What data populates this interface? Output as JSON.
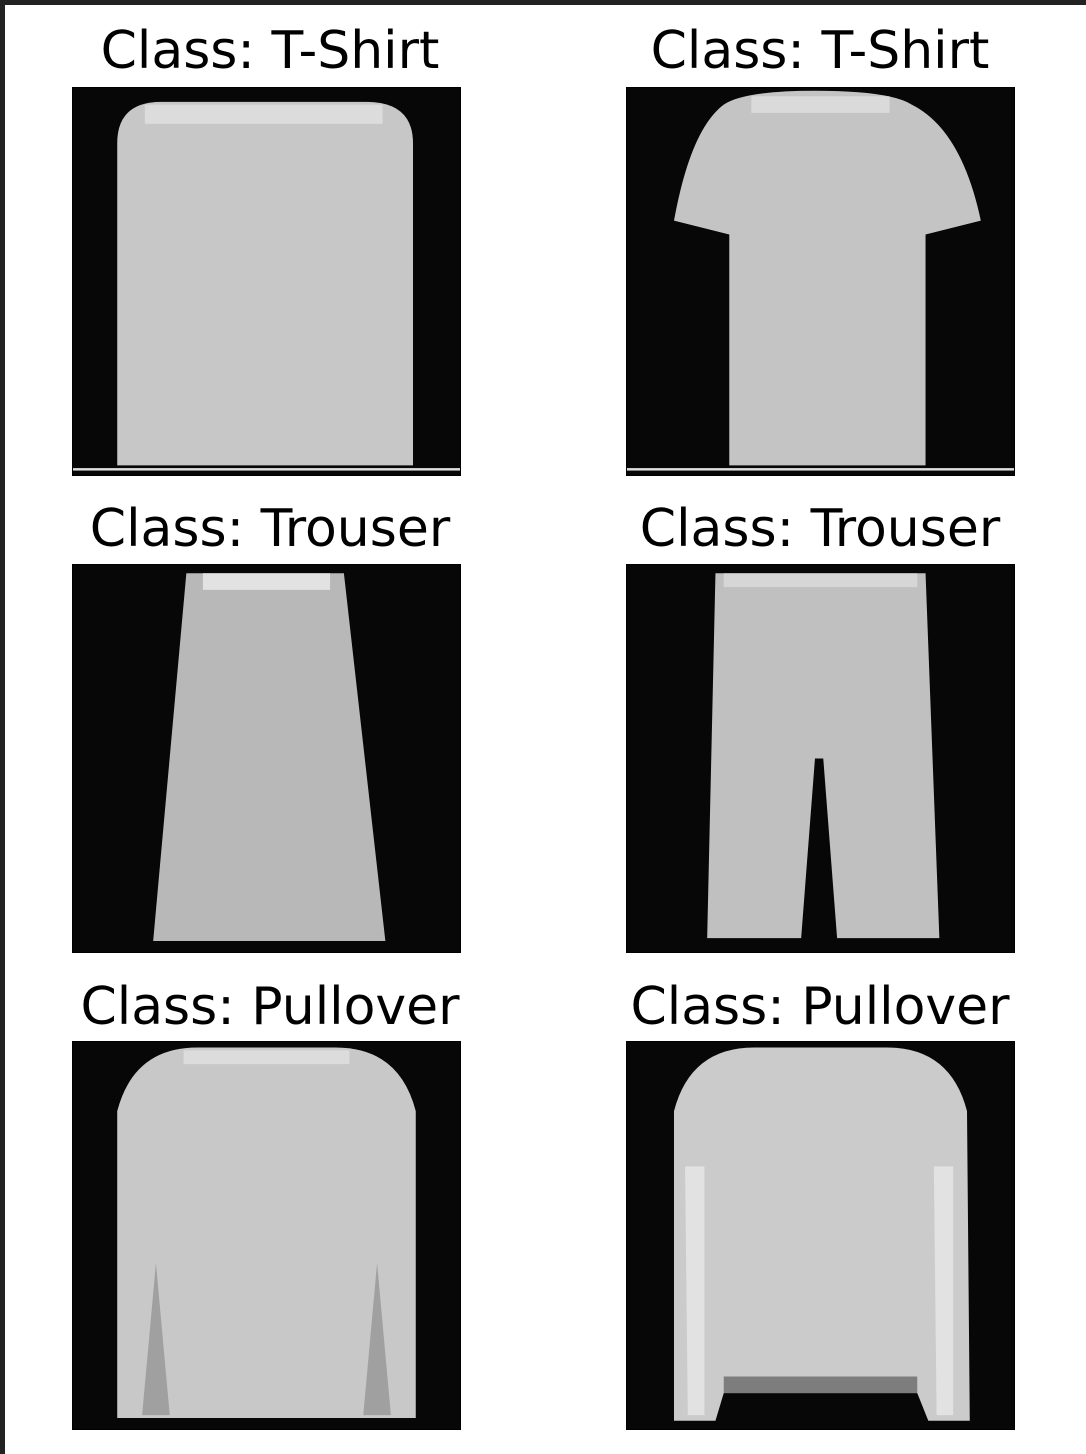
{
  "figure": {
    "panels": [
      {
        "title": "Class: T-Shirt",
        "garment": "tshirt-boxy-silhouette"
      },
      {
        "title": "Class: T-Shirt",
        "garment": "tshirt-short-sleeve-silhouette"
      },
      {
        "title": "Class: Trouser",
        "garment": "trouser-skirt-shaped-silhouette"
      },
      {
        "title": "Class: Trouser",
        "garment": "trouser-two-leg-silhouette"
      },
      {
        "title": "Class: Pullover",
        "garment": "pullover-wide-silhouette"
      },
      {
        "title": "Class: Pullover",
        "garment": "pullover-long-sleeve-silhouette"
      }
    ],
    "colors": {
      "frame": "#222222",
      "background": "#ffffff",
      "image_background": "#070707",
      "garment": "#c6c6c6",
      "garment_highlight": "#e6e6e6"
    }
  }
}
